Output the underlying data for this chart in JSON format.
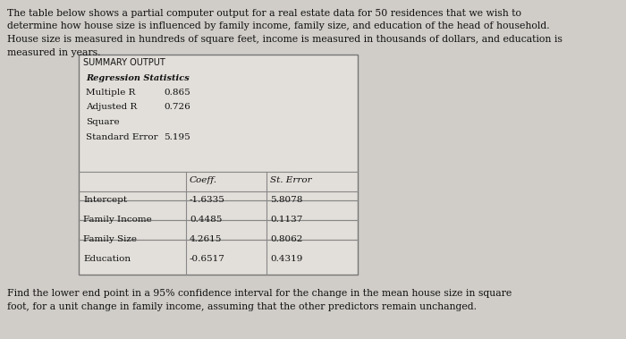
{
  "bg_color": "#d0cdc8",
  "box_bg": "#e2dfda",
  "intro_text_lines": [
    "The table below shows a partial computer output for a real estate data for 50 residences that we wish to",
    "determine how house size is influenced by family income, family size, and education of the head of household.",
    "House size is measured in hundreds of square feet, income is measured in thousands of dollars, and education is",
    "measured in years."
  ],
  "summary_title": "SUMMARY OUTPUT",
  "regression_label": "Regression Statistics",
  "reg_stats": [
    [
      "Multiple R",
      "0.865"
    ],
    [
      "Adjusted R",
      "0.726"
    ],
    [
      "Square",
      ""
    ],
    [
      "Standard Error",
      "5.195"
    ]
  ],
  "table_headers": [
    "",
    "Coeff.",
    "St. Error"
  ],
  "table_rows": [
    [
      "Intercept",
      "-1.6335",
      "5.8078"
    ],
    [
      "Family Income",
      "0.4485",
      "0.1137"
    ],
    [
      "Family Size",
      "4.2615",
      "0.8062"
    ],
    [
      "Education",
      "-0.6517",
      "0.4319"
    ]
  ],
  "footer_text_lines": [
    "Find the lower end point in a 95% confidence interval for the change in the mean house size in square",
    "foot, for a unit change in family income, assuming that the other predictors remain unchanged."
  ],
  "intro_fontsize": 7.8,
  "body_fontsize": 7.5,
  "small_fontsize": 7.0,
  "line_color": "#888888",
  "edge_color": "#777777",
  "text_color": "#111111"
}
